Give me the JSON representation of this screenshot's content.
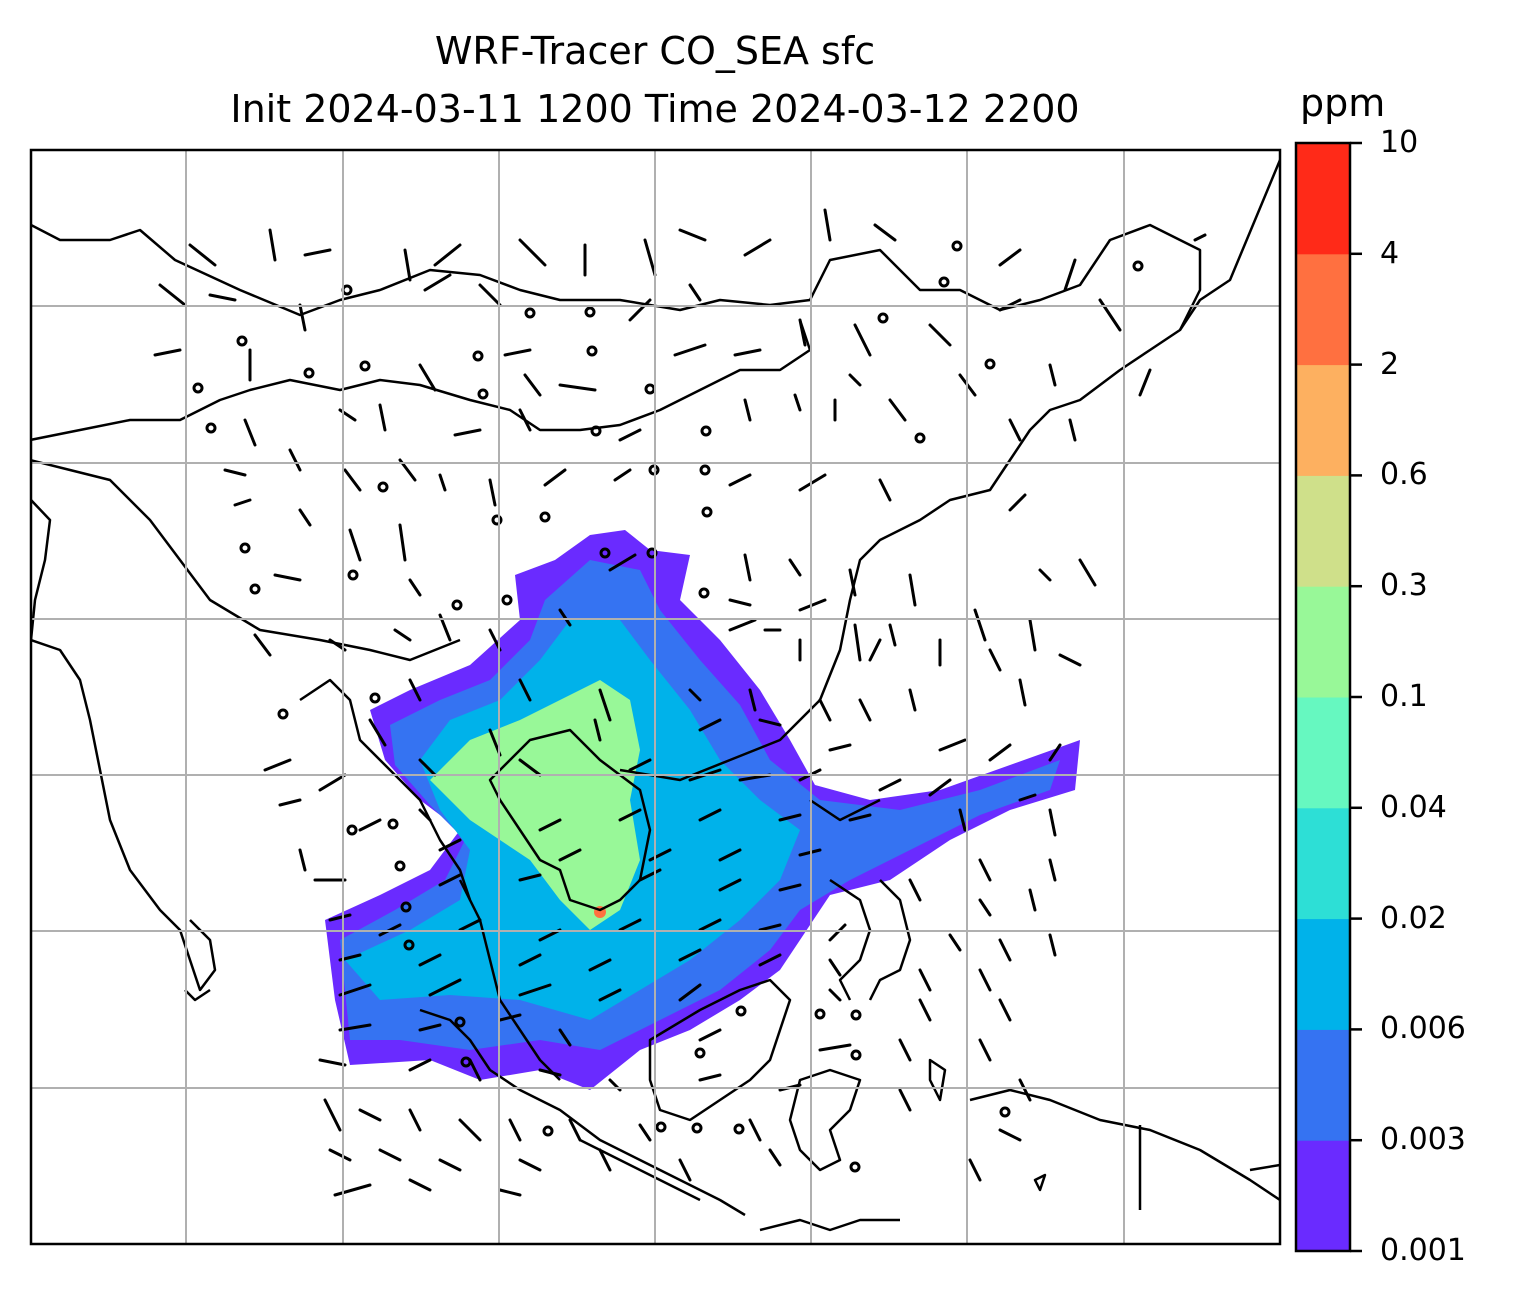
{
  "title": {
    "line1": "WRF-Tracer CO_SEA sfc",
    "line2": "Init 2024-03-11 1200 Time 2024-03-12 2200"
  },
  "colorbar": {
    "unit": "ppm",
    "levels": [
      {
        "label": "0.001",
        "color": "#6a2bff"
      },
      {
        "label": "0.003",
        "color": "#3573f2"
      },
      {
        "label": "0.006",
        "color": "#00b2ea"
      },
      {
        "label": "0.02",
        "color": "#2ddfd6"
      },
      {
        "label": "0.04",
        "color": "#66f8c0"
      },
      {
        "label": "0.1",
        "color": "#98f898"
      },
      {
        "label": "0.3",
        "color": "#cfe08a"
      },
      {
        "label": "0.6",
        "color": "#fdb060"
      },
      {
        "label": "2",
        "color": "#ff7040"
      },
      {
        "label": "4",
        "color": "#ff2a18"
      },
      {
        "label": "10",
        "color": null
      }
    ]
  },
  "map": {
    "gridlines": true,
    "plume_color_low": "#6a2bff",
    "plume_color_mid": "#3573f2",
    "plume_color_core": "#00b2ea",
    "plume_color_peak": "#98f898"
  }
}
